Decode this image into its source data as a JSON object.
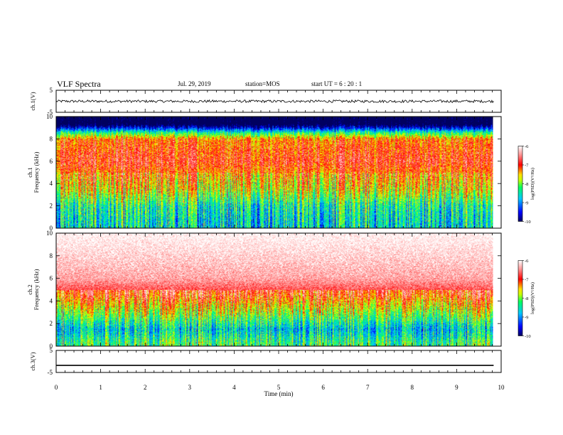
{
  "header": {
    "title": "VLF Spectra",
    "date": "Jul. 29, 2019",
    "station": "station=MOS",
    "start": "start UT =  6 : 20 : 1"
  },
  "colors": {
    "spectrum_scale": [
      "#000090",
      "#0000ff",
      "#00c8ff",
      "#00ff60",
      "#c8ff00",
      "#ffe000",
      "#ff0000",
      "#ffffff"
    ],
    "axis": "#000000",
    "saturated_band": "#000000"
  },
  "chart_data": [
    {
      "type": "line",
      "panel": "ch1-waveform",
      "ylabel": "ch.1(V)",
      "ylim": [
        -5,
        5
      ],
      "yticks": [
        "5",
        "-5"
      ],
      "xlim": [
        0,
        10
      ],
      "series": [
        {
          "x": [
            0,
            9.83
          ],
          "y": [
            0,
            0
          ],
          "noise_amplitude": 0.6
        }
      ]
    },
    {
      "type": "heatmap",
      "panel": "ch1-spectrogram",
      "ylabel": "ch.1\nFrequency (kHz)",
      "ylim": [
        0,
        10
      ],
      "yticks": [
        "0",
        "2",
        "4",
        "6",
        "8",
        "10"
      ],
      "xlim": [
        0,
        10
      ],
      "colorbar": {
        "label": "log(PSD)(V²/Hz)",
        "range": [
          -10,
          -6
        ],
        "ticks": [
          "-6",
          "-7",
          "-8",
          "-9",
          "-10"
        ]
      },
      "frequency_profile": [
        {
          "f_khz": 9.4,
          "log_psd": -10.5
        },
        {
          "f_khz": 8.6,
          "log_psd": -8.3
        },
        {
          "f_khz": 8.0,
          "log_psd": -7.2
        },
        {
          "f_khz": 6.0,
          "log_psd": -6.9
        },
        {
          "f_khz": 3.5,
          "log_psd": -7.6
        },
        {
          "f_khz": 2.0,
          "log_psd": -8.4
        },
        {
          "f_khz": 0.5,
          "log_psd": -8.6
        }
      ]
    },
    {
      "type": "heatmap",
      "panel": "ch2-spectrogram",
      "ylabel": "ch.2\nFrequency (kHz)",
      "ylim": [
        0,
        10
      ],
      "yticks": [
        "0",
        "2",
        "4",
        "6",
        "8",
        "10"
      ],
      "xlim": [
        0,
        10
      ],
      "colorbar": {
        "label": "log(PSD)(V²/Hz)",
        "range": [
          -10,
          -6
        ],
        "ticks": [
          "-6",
          "-7",
          "-8",
          "-9",
          "-10"
        ]
      },
      "frequency_profile": [
        {
          "f_khz": 10.0,
          "log_psd": -6.1
        },
        {
          "f_khz": 6.0,
          "log_psd": -6.5
        },
        {
          "f_khz": 4.5,
          "log_psd": -7.0
        },
        {
          "f_khz": 3.0,
          "log_psd": -7.8
        },
        {
          "f_khz": 1.5,
          "log_psd": -8.7
        },
        {
          "f_khz": 0.3,
          "log_psd": -8.2
        }
      ]
    },
    {
      "type": "line",
      "panel": "ch3-waveform",
      "ylabel": "ch.3(V)",
      "ylim": [
        -5,
        5
      ],
      "yticks": [
        "5",
        "-5"
      ],
      "xlim": [
        0,
        10
      ],
      "xlabel": "Time (min)",
      "xticks": [
        "0",
        "1",
        "2",
        "3",
        "4",
        "5",
        "6",
        "7",
        "8",
        "9",
        "10"
      ],
      "series": [
        {
          "x": [
            0,
            9.83
          ],
          "y": [
            -1.8,
            -1.8
          ],
          "noise_amplitude": 0
        }
      ]
    }
  ]
}
